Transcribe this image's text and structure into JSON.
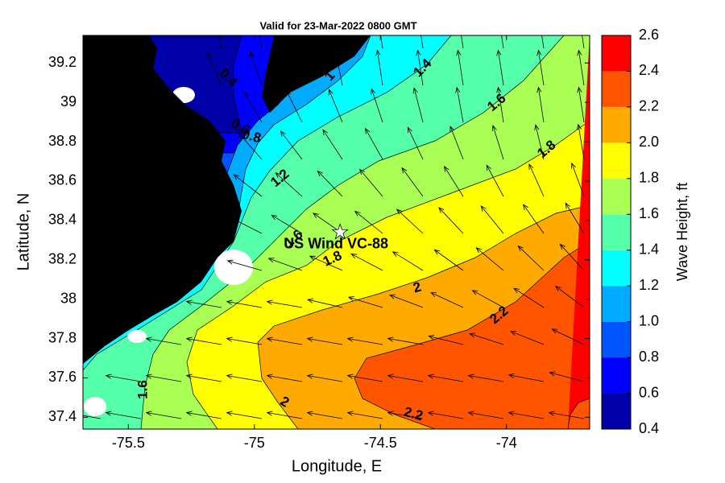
{
  "chart_data": {
    "type": "contour",
    "title": "Valid for 23-Mar-2022 0800 GMT",
    "x_label": "Longitude, E",
    "y_label": "Latitude, N",
    "xlim": [
      -75.68,
      -73.67
    ],
    "ylim": [
      37.34,
      39.34
    ],
    "xticks": [
      -75.5,
      -75,
      -74.5,
      -74
    ],
    "yticks": [
      37.4,
      37.6,
      37.8,
      38,
      38.2,
      38.4,
      38.6,
      38.8,
      39,
      39.2
    ],
    "colorbar": {
      "label": "Wave Height, ft",
      "clim": [
        0.4,
        2.6
      ],
      "ticks": [
        0.4,
        0.6,
        0.8,
        {
          "value": 1,
          "label": "1.0"
        },
        1.2,
        1.4,
        1.6,
        1.8,
        {
          "value": 2,
          "label": "2.0"
        },
        2.2,
        2.4,
        2.6
      ],
      "colors": [
        "#0000a8",
        "#0000ff",
        "#0055ff",
        "#00aaff",
        "#00ffff",
        "#55ffaa",
        "#aaff55",
        "#ffff00",
        "#ffaa00",
        "#ff5500",
        "#ff0000"
      ]
    },
    "contour_labels": [
      0.4,
      0.6,
      0.8,
      1,
      1.2,
      1.4,
      1.6,
      1.8,
      1.6,
      1.8,
      2,
      2.2,
      2,
      2.2,
      1.6
    ],
    "site": {
      "name": "US Wind VC-88",
      "lon": -74.66,
      "lat": 38.34
    }
  }
}
